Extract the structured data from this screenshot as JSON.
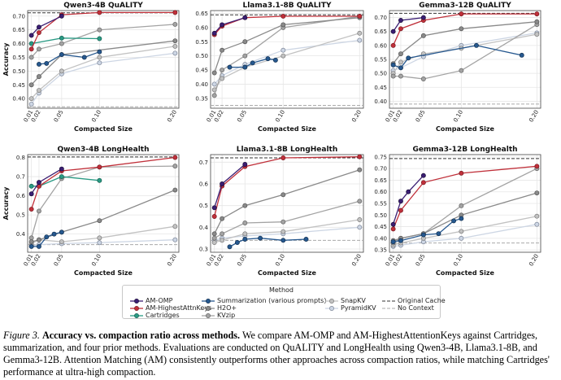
{
  "panels": [
    {
      "id": "qwen-quality",
      "title": "Qwen3-4B QuALITY",
      "ylabel": "Accuracy",
      "xlabel": "Compacted Size",
      "ylim": [
        0.365,
        0.72
      ],
      "yticks": [
        0.4,
        0.45,
        0.5,
        0.55,
        0.6,
        0.65,
        0.7
      ],
      "ytick_labels": [
        "0.40",
        "0.45",
        "0.50",
        "0.55",
        "0.60",
        "0.65",
        "0.70"
      ],
      "original_cache": 0.712,
      "no_context": 0.37,
      "series": [
        {
          "method": "AM-OMP",
          "x": [
            0.01,
            0.02,
            0.05
          ],
          "y": [
            0.63,
            0.66,
            0.7
          ]
        },
        {
          "method": "AM-HighestAttnKeys",
          "x": [
            0.01,
            0.02,
            0.05,
            0.1,
            0.2
          ],
          "y": [
            0.58,
            0.64,
            0.705,
            0.713,
            0.713
          ]
        },
        {
          "method": "Cartridges",
          "x": [
            0.01,
            0.05,
            0.1
          ],
          "y": [
            0.6,
            0.62,
            0.618
          ]
        },
        {
          "method": "Summarization",
          "x": [
            0.02,
            0.03,
            0.05,
            0.08,
            0.1
          ],
          "y": [
            0.525,
            0.528,
            0.56,
            0.55,
            0.57
          ]
        },
        {
          "method": "H2O+",
          "x": [
            0.01,
            0.02,
            0.05,
            0.2
          ],
          "y": [
            0.45,
            0.48,
            0.56,
            0.61
          ]
        },
        {
          "method": "KVzip",
          "x": [
            0.01,
            0.02,
            0.05,
            0.1,
            0.2
          ],
          "y": [
            0.55,
            0.58,
            0.6,
            0.65,
            0.67
          ]
        },
        {
          "method": "SnapKV",
          "x": [
            0.01,
            0.02,
            0.05,
            0.1,
            0.2
          ],
          "y": [
            0.4,
            0.43,
            0.5,
            0.55,
            0.59
          ]
        },
        {
          "method": "PyramidKV",
          "x": [
            0.01,
            0.02,
            0.05,
            0.1,
            0.2
          ],
          "y": [
            0.38,
            0.42,
            0.49,
            0.53,
            0.565
          ]
        }
      ]
    },
    {
      "id": "llama-quality",
      "title": "Llama3.1-8B QuALITY",
      "ylabel": "",
      "xlabel": "Compacted Size",
      "ylim": [
        0.315,
        0.66
      ],
      "yticks": [
        0.35,
        0.4,
        0.45,
        0.5,
        0.55,
        0.6,
        0.65
      ],
      "ytick_labels": [
        "0.35",
        "0.40",
        "0.45",
        "0.50",
        "0.55",
        "0.60",
        "0.65"
      ],
      "original_cache": 0.645,
      "no_context": 0.325,
      "series": [
        {
          "method": "AM-OMP",
          "x": [
            0.01,
            0.02,
            0.05
          ],
          "y": [
            0.58,
            0.61,
            0.635
          ]
        },
        {
          "method": "AM-HighestAttnKeys",
          "x": [
            0.01,
            0.02,
            0.05,
            0.1,
            0.2
          ],
          "y": [
            0.575,
            0.605,
            0.635,
            0.64,
            0.64
          ]
        },
        {
          "method": "Summarization",
          "x": [
            0.03,
            0.05,
            0.06,
            0.08,
            0.09
          ],
          "y": [
            0.46,
            0.46,
            0.475,
            0.49,
            0.485
          ]
        },
        {
          "method": "H2O+",
          "x": [
            0.01,
            0.02,
            0.05,
            0.1,
            0.2
          ],
          "y": [
            0.44,
            0.52,
            0.55,
            0.61,
            0.635
          ]
        },
        {
          "method": "KVzip",
          "x": [
            0.01,
            0.02,
            0.05,
            0.1,
            0.2
          ],
          "y": [
            0.36,
            0.45,
            0.5,
            0.6,
            0.64
          ]
        },
        {
          "method": "SnapKV",
          "x": [
            0.01,
            0.02,
            0.05,
            0.1,
            0.2
          ],
          "y": [
            0.38,
            0.42,
            0.46,
            0.5,
            0.58
          ]
        },
        {
          "method": "PyramidKV",
          "x": [
            0.01,
            0.02,
            0.05,
            0.1,
            0.2
          ],
          "y": [
            0.4,
            0.43,
            0.47,
            0.52,
            0.555
          ]
        }
      ]
    },
    {
      "id": "gemma-quality",
      "title": "Gemma3-12B QuALITY",
      "ylabel": "",
      "xlabel": "Compacted Size",
      "ylim": [
        0.375,
        0.725
      ],
      "yticks": [
        0.4,
        0.45,
        0.5,
        0.55,
        0.6,
        0.65,
        0.7
      ],
      "ytick_labels": [
        "0.40",
        "0.45",
        "0.50",
        "0.55",
        "0.60",
        "0.65",
        "0.70"
      ],
      "original_cache": 0.715,
      "no_context": 0.39,
      "series": [
        {
          "method": "AM-OMP",
          "x": [
            0.01,
            0.02,
            0.05
          ],
          "y": [
            0.65,
            0.69,
            0.7
          ]
        },
        {
          "method": "AM-HighestAttnKeys",
          "x": [
            0.01,
            0.02,
            0.05,
            0.1,
            0.2
          ],
          "y": [
            0.6,
            0.66,
            0.69,
            0.713,
            0.713
          ]
        },
        {
          "method": "Summarization",
          "x": [
            0.01,
            0.02,
            0.03,
            0.12,
            0.18
          ],
          "y": [
            0.53,
            0.52,
            0.555,
            0.6,
            0.565
          ]
        },
        {
          "method": "H2O+",
          "x": [
            0.01,
            0.02,
            0.05,
            0.1,
            0.2
          ],
          "y": [
            0.535,
            0.57,
            0.635,
            0.66,
            0.685
          ]
        },
        {
          "method": "KVzip",
          "x": [
            0.01,
            0.02,
            0.05,
            0.1,
            0.2
          ],
          "y": [
            0.49,
            0.49,
            0.48,
            0.51,
            0.675
          ]
        },
        {
          "method": "SnapKV",
          "x": [
            0.01,
            0.02,
            0.05,
            0.1,
            0.2
          ],
          "y": [
            0.5,
            0.54,
            0.57,
            0.59,
            0.64
          ]
        },
        {
          "method": "PyramidKV",
          "x": [
            0.01,
            0.02,
            0.05,
            0.1,
            0.2
          ],
          "y": [
            0.51,
            0.52,
            0.56,
            0.6,
            0.645
          ]
        }
      ]
    },
    {
      "id": "qwen-longhealth",
      "title": "Qwen3-4B LongHealth",
      "ylabel": "Accuracy",
      "xlabel": "Compacted Size",
      "ylim": [
        0.305,
        0.815
      ],
      "yticks": [
        0.4,
        0.5,
        0.6,
        0.7,
        0.8
      ],
      "ytick_labels": [
        "0.4",
        "0.5",
        "0.6",
        "0.7",
        "0.8"
      ],
      "original_cache": 0.803,
      "no_context": 0.345,
      "series": [
        {
          "method": "AM-OMP",
          "x": [
            0.01,
            0.02,
            0.05
          ],
          "y": [
            0.61,
            0.67,
            0.74
          ]
        },
        {
          "method": "AM-HighestAttnKeys",
          "x": [
            0.01,
            0.02,
            0.05,
            0.1,
            0.2
          ],
          "y": [
            0.53,
            0.65,
            0.73,
            0.75,
            0.8
          ]
        },
        {
          "method": "Cartridges",
          "x": [
            0.01,
            0.02,
            0.05,
            0.1
          ],
          "y": [
            0.65,
            0.65,
            0.7,
            0.68
          ]
        },
        {
          "method": "Summarization",
          "x": [
            0.01,
            0.02,
            0.03,
            0.04,
            0.05
          ],
          "y": [
            0.335,
            0.335,
            0.385,
            0.4,
            0.41
          ]
        },
        {
          "method": "H2O+",
          "x": [
            0.01,
            0.02,
            0.05,
            0.1,
            0.2
          ],
          "y": [
            0.36,
            0.37,
            0.41,
            0.47,
            0.63
          ]
        },
        {
          "method": "KVzip",
          "x": [
            0.01,
            0.02,
            0.05,
            0.1,
            0.2
          ],
          "y": [
            0.38,
            0.52,
            0.69,
            0.75,
            0.755
          ]
        },
        {
          "method": "SnapKV",
          "x": [
            0.01,
            0.02,
            0.05,
            0.1,
            0.2
          ],
          "y": [
            0.35,
            0.37,
            0.36,
            0.38,
            0.44
          ]
        },
        {
          "method": "PyramidKV",
          "x": [
            0.01,
            0.02,
            0.05,
            0.1,
            0.2
          ],
          "y": [
            0.34,
            0.345,
            0.35,
            0.355,
            0.37
          ]
        }
      ]
    },
    {
      "id": "llama-longhealth",
      "title": "Llama3.1-8B LongHealth",
      "ylabel": "",
      "xlabel": "Compacted Size",
      "ylim": [
        0.285,
        0.735
      ],
      "yticks": [
        0.3,
        0.4,
        0.5,
        0.6,
        0.7
      ],
      "ytick_labels": [
        "0.3",
        "0.4",
        "0.5",
        "0.6",
        "0.7"
      ],
      "original_cache": 0.72,
      "no_context": 0.34,
      "series": [
        {
          "method": "AM-OMP",
          "x": [
            0.01,
            0.02,
            0.05
          ],
          "y": [
            0.49,
            0.6,
            0.69
          ]
        },
        {
          "method": "AM-HighestAttnKeys",
          "x": [
            0.01,
            0.02,
            0.05,
            0.1,
            0.2
          ],
          "y": [
            0.45,
            0.59,
            0.68,
            0.72,
            0.725
          ]
        },
        {
          "method": "Summarization",
          "x": [
            0.03,
            0.04,
            0.05,
            0.07,
            0.1,
            0.13
          ],
          "y": [
            0.31,
            0.33,
            0.345,
            0.35,
            0.34,
            0.345
          ]
        },
        {
          "method": "H2O+",
          "x": [
            0.01,
            0.02,
            0.05,
            0.1,
            0.2
          ],
          "y": [
            0.37,
            0.44,
            0.5,
            0.55,
            0.665
          ]
        },
        {
          "method": "KVzip",
          "x": [
            0.01,
            0.02,
            0.05,
            0.1,
            0.2
          ],
          "y": [
            0.35,
            0.37,
            0.42,
            0.425,
            0.52
          ]
        },
        {
          "method": "SnapKV",
          "x": [
            0.01,
            0.02,
            0.05,
            0.1,
            0.2
          ],
          "y": [
            0.33,
            0.34,
            0.37,
            0.38,
            0.435
          ]
        },
        {
          "method": "PyramidKV",
          "x": [
            0.01,
            0.02,
            0.05,
            0.1,
            0.2
          ],
          "y": [
            0.34,
            0.35,
            0.36,
            0.37,
            0.4
          ]
        }
      ]
    },
    {
      "id": "gemma-longhealth",
      "title": "Gemma3-12B LongHealth",
      "ylabel": "",
      "xlabel": "Compacted Size",
      "ylim": [
        0.34,
        0.76
      ],
      "yticks": [
        0.35,
        0.4,
        0.45,
        0.5,
        0.55,
        0.6,
        0.65,
        0.7,
        0.75
      ],
      "ytick_labels": [
        "0.35",
        "0.40",
        "0.45",
        "0.50",
        "0.55",
        "0.60",
        "0.65",
        "0.70",
        "0.75"
      ],
      "original_cache": 0.743,
      "no_context": 0.38,
      "series": [
        {
          "method": "AM-OMP",
          "x": [
            0.01,
            0.02,
            0.03,
            0.05
          ],
          "y": [
            0.46,
            0.56,
            0.6,
            0.67
          ]
        },
        {
          "method": "AM-HighestAttnKeys",
          "x": [
            0.01,
            0.02,
            0.05,
            0.1,
            0.2
          ],
          "y": [
            0.44,
            0.52,
            0.64,
            0.68,
            0.71
          ]
        },
        {
          "method": "Summarization",
          "x": [
            0.01,
            0.02,
            0.05,
            0.07,
            0.09,
            0.1
          ],
          "y": [
            0.385,
            0.39,
            0.415,
            0.42,
            0.475,
            0.485
          ]
        },
        {
          "method": "H2O+",
          "x": [
            0.01,
            0.02,
            0.05,
            0.1,
            0.2
          ],
          "y": [
            0.39,
            0.4,
            0.42,
            0.5,
            0.595
          ]
        },
        {
          "method": "KVzip",
          "x": [
            0.01,
            0.02,
            0.05,
            0.1,
            0.2
          ],
          "y": [
            0.38,
            0.4,
            0.42,
            0.54,
            0.7
          ]
        },
        {
          "method": "SnapKV",
          "x": [
            0.01,
            0.02,
            0.05,
            0.1,
            0.2
          ],
          "y": [
            0.37,
            0.38,
            0.4,
            0.43,
            0.495
          ]
        },
        {
          "method": "PyramidKV",
          "x": [
            0.01,
            0.02,
            0.05,
            0.1,
            0.2
          ],
          "y": [
            0.365,
            0.37,
            0.385,
            0.4,
            0.46
          ]
        }
      ]
    }
  ],
  "xticks": [
    0.01,
    0.02,
    0.05,
    0.1,
    0.2
  ],
  "xtick_labels": [
    "0.01",
    "0.02",
    "0.05",
    "0.10",
    "0.20"
  ],
  "styles": {
    "AM-OMP": {
      "color": "#3b1e73",
      "edge": "#1a0d3a"
    },
    "AM-HighestAttnKeys": {
      "color": "#c0303a",
      "edge": "#7a1a22"
    },
    "Cartridges": {
      "color": "#2a9a84",
      "edge": "#156050"
    },
    "Summarization": {
      "color": "#26588f",
      "edge": "#123050"
    },
    "H2O+": {
      "color": "#8a8a8a",
      "edge": "#555555"
    },
    "KVzip": {
      "color": "#a3a3a3",
      "edge": "#666666"
    },
    "SnapKV": {
      "color": "#c2c2c2",
      "edge": "#7a7a7a"
    },
    "PyramidKV": {
      "color": "#cdd6e4",
      "edge": "#7b8496"
    }
  },
  "legend": {
    "title": "Method",
    "items": [
      {
        "key": "AM-OMP",
        "label": "AM-OMP",
        "type": "marker"
      },
      {
        "key": "AM-HighestAttnKeys",
        "label": "AM-HighestAttnKeys",
        "type": "marker"
      },
      {
        "key": "Cartridges",
        "label": "Cartridges",
        "type": "marker"
      },
      {
        "key": "Summarization",
        "label": "Summarization (various prompts)",
        "type": "marker"
      },
      {
        "key": "H2O+",
        "label": "H2O+",
        "type": "marker"
      },
      {
        "key": "KVzip",
        "label": "KVzip",
        "type": "marker"
      },
      {
        "key": "SnapKV",
        "label": "SnapKV",
        "type": "marker"
      },
      {
        "key": "PyramidKV",
        "label": "PyramidKV",
        "type": "marker"
      },
      {
        "key": "original",
        "label": "Original Cache",
        "type": "dash-dark"
      },
      {
        "key": "nocontext",
        "label": "No Context",
        "type": "dash-light"
      }
    ]
  },
  "caption": {
    "fig_label": "Figure 3.",
    "heading": "Accuracy vs. compaction ratio across methods.",
    "body": "We compare AM-OMP and AM-HighestAttentionKeys against Cartridges, summarization, and four prior methods. Evaluations are conducted on QuALITY and LongHealth using Qwen3-4B, Llama3.1-8B, and Gemma3-12B. Attention Matching (AM) consistently outperforms other approaches across compaction ratios, while matching Cartridges' performance at ultra-high compaction."
  },
  "chart_data": [
    {
      "type": "line",
      "title": "Qwen3-4B QuALITY",
      "xlabel": "Compacted Size",
      "ylabel": "Accuracy",
      "ref": "panels.0"
    },
    {
      "type": "line",
      "title": "Llama3.1-8B QuALITY",
      "xlabel": "Compacted Size",
      "ylabel": "",
      "ref": "panels.1"
    },
    {
      "type": "line",
      "title": "Gemma3-12B QuALITY",
      "xlabel": "Compacted Size",
      "ylabel": "",
      "ref": "panels.2"
    },
    {
      "type": "line",
      "title": "Qwen3-4B LongHealth",
      "xlabel": "Compacted Size",
      "ylabel": "Accuracy",
      "ref": "panels.3"
    },
    {
      "type": "line",
      "title": "Llama3.1-8B LongHealth",
      "xlabel": "Compacted Size",
      "ylabel": "",
      "ref": "panels.4"
    },
    {
      "type": "line",
      "title": "Gemma3-12B LongHealth",
      "xlabel": "Compacted Size",
      "ylabel": "",
      "ref": "panels.5"
    }
  ]
}
